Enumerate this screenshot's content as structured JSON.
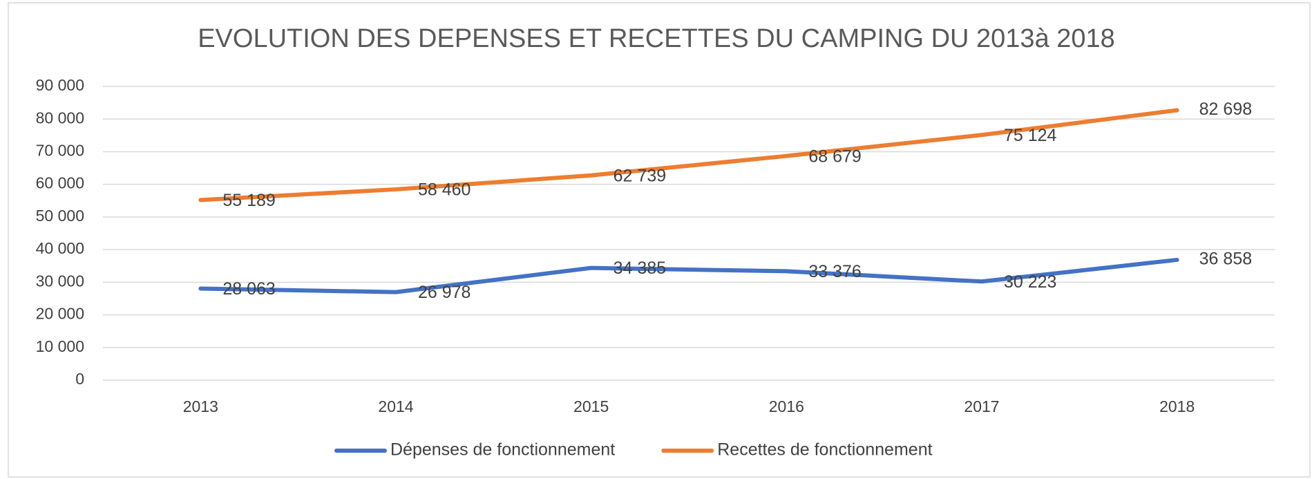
{
  "chart_data": {
    "type": "line",
    "title": "EVOLUTION DES DEPENSES ET RECETTES DU CAMPING DU 2013à 2018",
    "categories": [
      "2013",
      "2014",
      "2015",
      "2016",
      "2017",
      "2018"
    ],
    "series": [
      {
        "name": "Dépenses de fonctionnement",
        "color": "#4472c4",
        "values": [
          28063,
          26978,
          34385,
          33376,
          30223,
          36858
        ],
        "value_labels": [
          "28 063",
          "26 978",
          "34 385",
          "33 376",
          "30 223",
          "36 858"
        ]
      },
      {
        "name": "Recettes de fonctionnement",
        "color": "#ed7d31",
        "values": [
          55189,
          58460,
          62739,
          68679,
          75124,
          82698
        ],
        "value_labels": [
          "55 189",
          "58 460",
          "62 739",
          "68 679",
          "75 124",
          "82 698"
        ]
      }
    ],
    "ylim": [
      0,
      90000
    ],
    "yticks": [
      0,
      {
        "value": 10000,
        "label": "10 000"
      },
      {
        "value": 20000,
        "label": "20 000"
      },
      {
        "value": 30000,
        "label": "30 000"
      },
      {
        "value": 40000,
        "label": "40 000"
      },
      {
        "value": 50000,
        "label": "50 000"
      },
      {
        "value": 60000,
        "label": "60 000"
      },
      {
        "value": 70000,
        "label": "70 000"
      },
      {
        "value": 80000,
        "label": "80 000"
      },
      {
        "value": 90000,
        "label": "90 000"
      }
    ],
    "grid": true,
    "legend": "bottom"
  }
}
